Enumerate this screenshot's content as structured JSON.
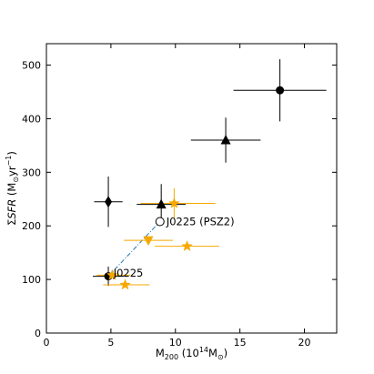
{
  "chart_data": {
    "type": "scatter",
    "xlabel": "M200 (10^14 M⊙)",
    "ylabel": "ΣSFR (M⊙yr^-1)",
    "xlim": [
      0,
      22.5
    ],
    "ylim": [
      0,
      540
    ],
    "x_ticks": [
      0,
      5,
      10,
      15,
      20
    ],
    "y_ticks": [
      0,
      100,
      200,
      300,
      400,
      500
    ],
    "grid": false,
    "colors": {
      "black": "#000000",
      "orange": "#f5a800",
      "link": "#1f77b4"
    },
    "series": [
      {
        "color": "black",
        "points": [
          {
            "marker": "circle",
            "x": 18.1,
            "y": 453,
            "xerr": 3.6,
            "yerr": 58
          },
          {
            "marker": "triangle-up",
            "x": 13.9,
            "y": 360,
            "xerr": 2.7,
            "yerr": 42
          },
          {
            "marker": "diamond",
            "x": 4.8,
            "y": 245,
            "xerr": 1.1,
            "yerr": 47
          },
          {
            "marker": "triangle-up",
            "x": 8.9,
            "y": 240,
            "xerr": 1.9,
            "yerr": 38
          },
          {
            "marker": "circle",
            "x": 4.8,
            "y": 106,
            "xerr": 1.2,
            "yerr": 18
          }
        ]
      },
      {
        "color": "orange",
        "points": [
          {
            "marker": "star",
            "x": 9.9,
            "y": 242,
            "xerr_lo": 2.6,
            "xerr_hi": 3.2,
            "yerr": 28
          },
          {
            "marker": "triangle-down",
            "x": 7.9,
            "y": 173,
            "xerr_lo": 1.9,
            "xerr_hi": 1.9,
            "yerr": 0
          },
          {
            "marker": "star",
            "x": 10.9,
            "y": 162,
            "xerr_lo": 2.5,
            "xerr_hi": 2.5,
            "yerr": 0
          },
          {
            "marker": "star",
            "x": 6.1,
            "y": 90,
            "xerr_lo": 1.7,
            "xerr_hi": 1.9,
            "yerr": 0
          },
          {
            "marker": "star",
            "x": 5.1,
            "y": 108,
            "xerr_lo": 1.2,
            "xerr_hi": 1.4,
            "yerr": 0
          }
        ]
      },
      {
        "color": "black",
        "points": [
          {
            "marker": "open-circle",
            "x": 8.8,
            "y": 208,
            "xerr": 0,
            "yerr": 0
          }
        ]
      }
    ],
    "connector": {
      "from": [
        4.8,
        106
      ],
      "to": [
        8.8,
        208
      ],
      "style": "dash-dot"
    },
    "annotations": [
      {
        "text": "J0225 (PSZ2)",
        "x": 9.3,
        "y": 208
      },
      {
        "text": "J0225",
        "x": 5.2,
        "y": 112
      }
    ]
  }
}
